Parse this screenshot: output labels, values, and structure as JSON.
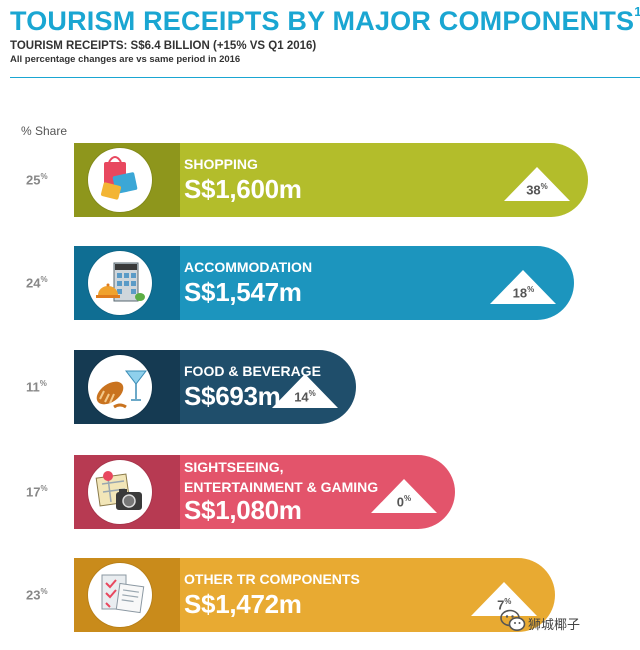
{
  "header": {
    "title": "TOURISM RECEIPTS BY MAJOR COMPONENTS",
    "title_sup": "1",
    "subtitle": "TOURISM RECEIPTS: S$6.4 BILLION (+15% VS Q1 2016)",
    "note": "All percentage changes are vs same period in 2016"
  },
  "share_heading": "% Share",
  "chart_data": {
    "type": "bar",
    "orientation": "horizontal",
    "title": "TOURISM RECEIPTS BY MAJOR COMPONENTS",
    "categories": [
      "SHOPPING",
      "ACCOMMODATION",
      "FOOD & BEVERAGE",
      "SIGHTSEEING, ENTERTAINMENT & GAMING",
      "OTHER TR COMPONENTS"
    ],
    "series": [
      {
        "values": [
          1600,
          1547,
          693,
          1080,
          1472
        ]
      }
    ],
    "items": [
      {
        "category_lines": [
          "SHOPPING"
        ],
        "value": 1600,
        "value_label": "S$1,600m",
        "share": 25,
        "change": 38,
        "color": "#b3bd2b",
        "shade": "#8e961c",
        "icon": "shopping-bag-icon"
      },
      {
        "category_lines": [
          "ACCOMMODATION"
        ],
        "value": 1547,
        "value_label": "S$1,547m",
        "share": 24,
        "change": 18,
        "color": "#1c95be",
        "shade": "#0f6e93",
        "icon": "hotel-icon"
      },
      {
        "category_lines": [
          "FOOD &  BEVERAGE"
        ],
        "value": 693,
        "value_label": "S$693m",
        "share": 11,
        "change": 14,
        "color": "#1f4e6b",
        "shade": "#153a52",
        "icon": "food-icon"
      },
      {
        "category_lines": [
          "SIGHTSEEING,",
          "ENTERTAINMENT & GAMING"
        ],
        "value": 1080,
        "value_label": "S$1,080m",
        "share": 17,
        "change": 0,
        "color": "#e3546b",
        "shade": "#b73a52",
        "icon": "map-camera-icon"
      },
      {
        "category_lines": [
          "OTHER TR COMPONENTS"
        ],
        "value": 1472,
        "value_label": "S$1,472m",
        "share": 23,
        "change": 7,
        "color": "#e8aa32",
        "shade": "#c98b1b",
        "icon": "receipt-icon"
      }
    ],
    "share_unit": "%",
    "change_unit": "%"
  },
  "watermark": "狮城椰子"
}
